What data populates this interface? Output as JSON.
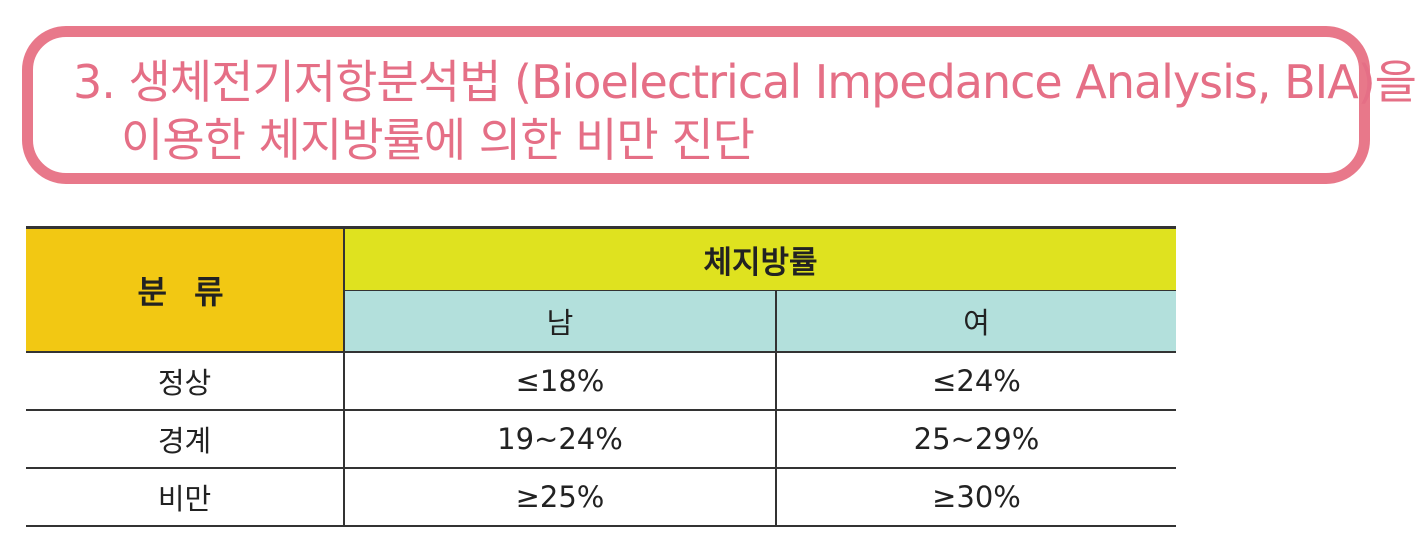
{
  "title": {
    "line1": "3. 생체전기저항분석법 (Bioelectrical Impedance Analysis, BIA)을",
    "line2": "이용한 체지방률에 의한 비만 진단"
  },
  "table": {
    "header": {
      "classification": "분 류",
      "body_fat": "체지방률",
      "male": "남",
      "female": "여"
    },
    "rows": [
      {
        "category": "정상",
        "male": "≤18%",
        "female": "≤24%"
      },
      {
        "category": "경계",
        "male": "19~24%",
        "female": "25~29%"
      },
      {
        "category": "비만",
        "male": "≥25%",
        "female": "≥30%"
      }
    ]
  },
  "colors": {
    "title_pink": "#e56f86",
    "header_orange": "#f2c813",
    "header_yellow": "#dfe21f",
    "header_teal": "#b3e0dc"
  }
}
